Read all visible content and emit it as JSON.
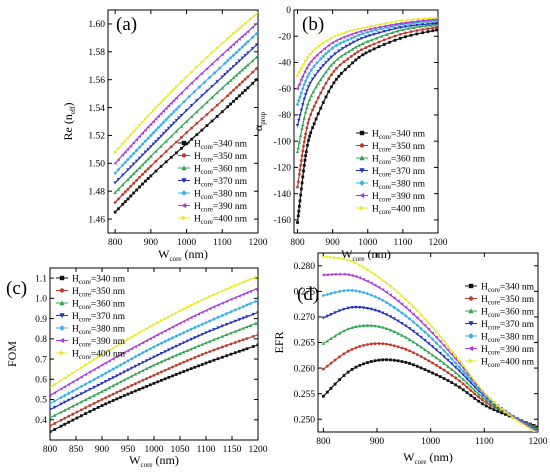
{
  "chart_data": [
    {
      "panel": "(a)",
      "type": "scatter",
      "xlabel_main": "W",
      "xlabel_sub": "core",
      "xlabel_unit": " (nm)",
      "ylabel_main": "Re (n",
      "ylabel_sub": "eff",
      "ylabel_end": ")",
      "xlim": [
        780,
        1200
      ],
      "ylim": [
        1.45,
        1.61
      ],
      "xticks": [
        800,
        900,
        1000,
        1100,
        1200
      ],
      "yticks": [
        1.46,
        1.48,
        1.5,
        1.52,
        1.54,
        1.56,
        1.58,
        1.6
      ],
      "ytick_labels": [
        "1.46",
        "1.48",
        "1.50",
        "1.52",
        "1.54",
        "1.56",
        "1.58",
        "1.60"
      ],
      "legend_position": "lower-right",
      "x": [
        800,
        900,
        1000,
        1100,
        1200
      ],
      "series": [
        {
          "name": "H=340 nm",
          "label_main": "H",
          "label_sub": "core",
          "label_rest": "=340 nm",
          "color": "#111111",
          "marker": "square",
          "values": [
            1.465,
            1.491,
            1.514,
            1.537,
            1.561
          ]
        },
        {
          "name": "H=350 nm",
          "label_main": "H",
          "label_sub": "core",
          "label_rest": "=350 nm",
          "color": "#c0392b",
          "marker": "circle",
          "values": [
            1.472,
            1.498,
            1.522,
            1.545,
            1.569
          ]
        },
        {
          "name": "H=360 nm",
          "label_main": "H",
          "label_sub": "core",
          "label_rest": "=360 nm",
          "color": "#2ea44f",
          "marker": "triangle",
          "values": [
            1.479,
            1.505,
            1.53,
            1.554,
            1.577
          ]
        },
        {
          "name": "H=370 nm",
          "label_main": "H",
          "label_sub": "core",
          "label_rest": "=370 nm",
          "color": "#1f2fbf",
          "marker": "triangle-down",
          "values": [
            1.486,
            1.512,
            1.538,
            1.562,
            1.586
          ]
        },
        {
          "name": "H=380 nm",
          "label_main": "H",
          "label_sub": "core",
          "label_rest": "=380 nm",
          "color": "#3ab0e8",
          "marker": "diamond",
          "values": [
            1.493,
            1.52,
            1.546,
            1.57,
            1.594
          ]
        },
        {
          "name": "H=390 nm",
          "label_main": "H",
          "label_sub": "core",
          "label_rest": "=390 nm",
          "color": "#a63ad6",
          "marker": "triangle-left",
          "values": [
            1.5,
            1.528,
            1.554,
            1.578,
            1.601
          ]
        },
        {
          "name": "H=400 nm",
          "label_main": "H",
          "label_sub": "core",
          "label_rest": "=400 nm",
          "color": "#e8e82a",
          "marker": "triangle-right",
          "values": [
            1.508,
            1.536,
            1.562,
            1.586,
            1.608
          ]
        }
      ]
    },
    {
      "panel": "(b)",
      "type": "scatter",
      "xlabel_main": "W",
      "xlabel_sub": "core",
      "xlabel_unit": " (nm)",
      "ylabel_main": "α",
      "ylabel_sub": "prop",
      "xlim": [
        790,
        1200
      ],
      "ylim": [
        -170,
        0
      ],
      "xticks": [
        800,
        900,
        1000,
        1100,
        1200
      ],
      "yticks": [
        -160,
        -140,
        -120,
        -100,
        -80,
        -60,
        -40,
        -20,
        0
      ],
      "ytick_labels": [
        "-160",
        "-140",
        "-120",
        "-100",
        "-80",
        "-60",
        "-40",
        "-20",
        "0"
      ],
      "legend_position": "lower-right",
      "x": [
        800,
        825,
        850,
        900,
        950,
        1000,
        1100,
        1200
      ],
      "series": [
        {
          "name": "H=340 nm",
          "label_main": "H",
          "label_sub": "core",
          "label_rest": "=340 nm",
          "color": "#111111",
          "marker": "square",
          "values": [
            -162,
            -108,
            -85,
            -57,
            -42,
            -32,
            -21,
            -15
          ]
        },
        {
          "name": "H=350 nm",
          "label_main": "H",
          "label_sub": "core",
          "label_rest": "=350 nm",
          "color": "#c0392b",
          "marker": "circle",
          "values": [
            -135,
            -92,
            -72,
            -48,
            -36,
            -28,
            -18,
            -13
          ]
        },
        {
          "name": "H=360 nm",
          "label_main": "H",
          "label_sub": "core",
          "label_rest": "=360 nm",
          "color": "#2ea44f",
          "marker": "triangle",
          "values": [
            -108,
            -76,
            -60,
            -41,
            -31,
            -24,
            -15,
            -11
          ]
        },
        {
          "name": "H=370 nm",
          "label_main": "H",
          "label_sub": "core",
          "label_rest": "=370 nm",
          "color": "#1f2fbf",
          "marker": "triangle-down",
          "values": [
            -88,
            -63,
            -50,
            -35,
            -26,
            -20,
            -13,
            -10
          ]
        },
        {
          "name": "H=380 nm",
          "label_main": "H",
          "label_sub": "core",
          "label_rest": "=380 nm",
          "color": "#3ab0e8",
          "marker": "diamond",
          "values": [
            -72,
            -53,
            -42,
            -29,
            -22,
            -17,
            -11,
            -8
          ]
        },
        {
          "name": "H=390 nm",
          "label_main": "H",
          "label_sub": "core",
          "label_rest": "=390 nm",
          "color": "#a63ad6",
          "marker": "triangle-left",
          "values": [
            -60,
            -45,
            -36,
            -25,
            -19,
            -15,
            -10,
            -7
          ]
        },
        {
          "name": "H=400 nm",
          "label_main": "H",
          "label_sub": "core",
          "label_rest": "=400 nm",
          "color": "#e8e82a",
          "marker": "triangle-right",
          "values": [
            -50,
            -38,
            -30,
            -21,
            -16,
            -13,
            -8,
            -6
          ]
        }
      ]
    },
    {
      "panel": "(c)",
      "type": "scatter",
      "xlabel_main": "W",
      "xlabel_sub": "core",
      "xlabel_unit": " (nm)",
      "ylabel_main": "FOM",
      "ylabel_sub": "",
      "xlim": [
        800,
        1200
      ],
      "ylim": [
        0.3,
        1.15
      ],
      "xticks": [
        800,
        850,
        900,
        950,
        1000,
        1050,
        1100,
        1150,
        1200
      ],
      "yticks": [
        0.4,
        0.5,
        0.6,
        0.7,
        0.8,
        0.9,
        1.0,
        1.1
      ],
      "ytick_labels": [
        "0.4",
        "0.5",
        "0.6",
        "0.7",
        "0.8",
        "0.9",
        "1.0",
        "1.1"
      ],
      "legend_position": "upper-left",
      "x": [
        800,
        900,
        1000,
        1100,
        1200
      ],
      "series": [
        {
          "name": "H=340 nm",
          "label_main": "H",
          "label_sub": "core",
          "label_rest": "=340 nm",
          "color": "#111111",
          "marker": "square",
          "values": [
            0.34,
            0.47,
            0.58,
            0.68,
            0.77
          ]
        },
        {
          "name": "H=350 nm",
          "label_main": "H",
          "label_sub": "core",
          "label_rest": "=350 nm",
          "color": "#c0392b",
          "marker": "circle",
          "values": [
            0.37,
            0.5,
            0.62,
            0.73,
            0.82
          ]
        },
        {
          "name": "H=360 nm",
          "label_main": "H",
          "label_sub": "core",
          "label_rest": "=360 nm",
          "color": "#2ea44f",
          "marker": "triangle",
          "values": [
            0.41,
            0.54,
            0.67,
            0.78,
            0.88
          ]
        },
        {
          "name": "H=370 nm",
          "label_main": "H",
          "label_sub": "core",
          "label_rest": "=370 nm",
          "color": "#1f2fbf",
          "marker": "triangle-down",
          "values": [
            0.45,
            0.58,
            0.71,
            0.83,
            0.93
          ]
        },
        {
          "name": "H=380 nm",
          "label_main": "H",
          "label_sub": "core",
          "label_rest": "=380 nm",
          "color": "#3ab0e8",
          "marker": "diamond",
          "values": [
            0.48,
            0.62,
            0.76,
            0.88,
            0.99
          ]
        },
        {
          "name": "H=390 nm",
          "label_main": "H",
          "label_sub": "core",
          "label_rest": "=390 nm",
          "color": "#a63ad6",
          "marker": "triangle-left",
          "values": [
            0.52,
            0.67,
            0.81,
            0.94,
            1.05
          ]
        },
        {
          "name": "H=400 nm",
          "label_main": "H",
          "label_sub": "core",
          "label_rest": "=400 nm",
          "color": "#e8e82a",
          "marker": "triangle-right",
          "values": [
            0.56,
            0.72,
            0.87,
            1.0,
            1.11
          ]
        }
      ]
    },
    {
      "panel": "(d)",
      "type": "scatter",
      "xlabel_main": "W",
      "xlabel_sub": "core",
      "xlabel_unit": " (nm)",
      "ylabel_main": "EFR",
      "ylabel_sub": "",
      "xlim": [
        790,
        1200
      ],
      "ylim": [
        0.2475,
        0.2825
      ],
      "xticks": [
        800,
        900,
        1000,
        1100,
        1200
      ],
      "yticks": [
        0.25,
        0.255,
        0.26,
        0.265,
        0.27,
        0.275,
        0.28
      ],
      "ytick_labels": [
        "0.250",
        "0.255",
        "0.260",
        "0.265",
        "0.270",
        "0.275",
        "0.280"
      ],
      "legend_position": "upper-right",
      "x": [
        800,
        850,
        900,
        950,
        1000,
        1050,
        1100,
        1150,
        1200
      ],
      "series": [
        {
          "name": "H=340 nm",
          "label_main": "H",
          "label_sub": "core",
          "label_rest": "=340 nm",
          "color": "#111111",
          "marker": "square",
          "values": [
            0.2545,
            0.2595,
            0.2615,
            0.2612,
            0.2592,
            0.2565,
            0.2528,
            0.2505,
            0.2485
          ]
        },
        {
          "name": "H=350 nm",
          "label_main": "H",
          "label_sub": "core",
          "label_rest": "=350 nm",
          "color": "#c0392b",
          "marker": "circle",
          "values": [
            0.2598,
            0.2635,
            0.2648,
            0.2638,
            0.2612,
            0.2578,
            0.2535,
            0.2508,
            0.2482
          ]
        },
        {
          "name": "H=360 nm",
          "label_main": "H",
          "label_sub": "core",
          "label_rest": "=360 nm",
          "color": "#2ea44f",
          "marker": "triangle",
          "values": [
            0.2648,
            0.2678,
            0.2682,
            0.2662,
            0.2628,
            0.2588,
            0.254,
            0.2508,
            0.248
          ]
        },
        {
          "name": "H=370 nm",
          "label_main": "H",
          "label_sub": "core",
          "label_rest": "=370 nm",
          "color": "#1f2fbf",
          "marker": "triangle-down",
          "values": [
            0.2698,
            0.2718,
            0.2712,
            0.2685,
            0.2645,
            0.2598,
            0.2545,
            0.2508,
            0.2478
          ]
        },
        {
          "name": "H=380 nm",
          "label_main": "H",
          "label_sub": "core",
          "label_rest": "=380 nm",
          "color": "#3ab0e8",
          "marker": "diamond",
          "values": [
            0.2742,
            0.2752,
            0.2738,
            0.2705,
            0.266,
            0.2606,
            0.2548,
            0.2508,
            0.2476
          ]
        },
        {
          "name": "H=390 nm",
          "label_main": "H",
          "label_sub": "core",
          "label_rest": "=390 nm",
          "color": "#a63ad6",
          "marker": "triangle-left",
          "values": [
            0.2782,
            0.2782,
            0.276,
            0.2722,
            0.2672,
            0.2614,
            0.255,
            0.2507,
            0.2474
          ]
        },
        {
          "name": "H=400 nm",
          "label_main": "H",
          "label_sub": "core",
          "label_rest": "=400 nm",
          "color": "#e8e82a",
          "marker": "triangle-right",
          "values": [
            0.2818,
            0.281,
            0.278,
            0.2738,
            0.2684,
            0.262,
            0.2552,
            0.2506,
            0.2472
          ]
        }
      ]
    }
  ]
}
